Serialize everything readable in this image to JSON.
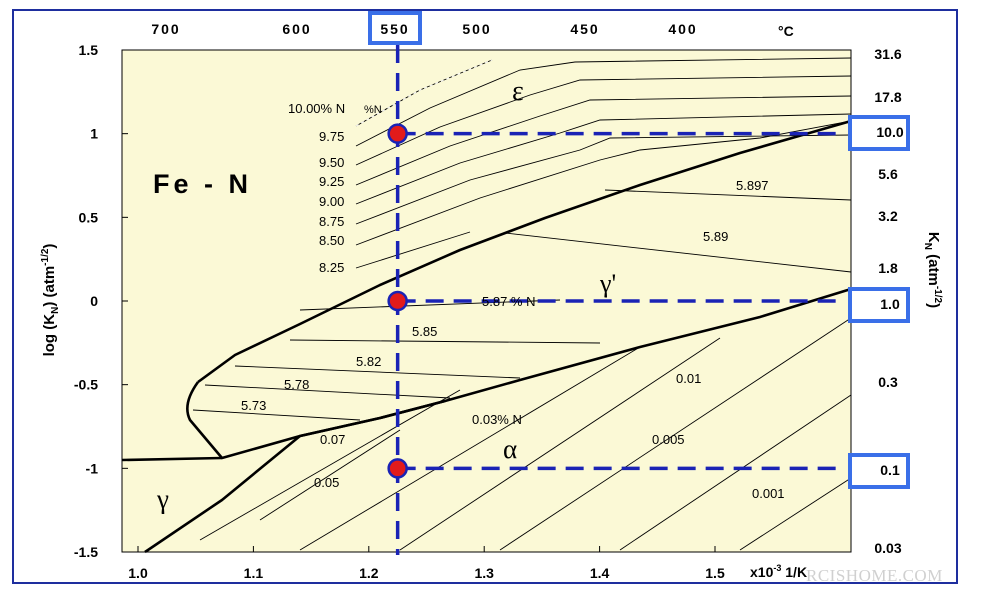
{
  "chart_data": {
    "type": "phase-diagram",
    "title": "Fe - N",
    "ylabel_left": "log (KN) (atm-1/2)",
    "ylabel_right": "KN (atm-1/2)",
    "xlabel_unit": "x10-3  1/K",
    "temp_unit": "°C",
    "x_range": [
      0.985,
      1.6
    ],
    "y_range": [
      -1.5,
      1.5
    ],
    "x_ticks": [
      "1.0",
      "1.1",
      "1.2",
      "1.3",
      "1.4",
      "1.5"
    ],
    "y_ticks_left": [
      "1.5",
      "1",
      "0.5",
      "0",
      "-0.5",
      "-1",
      "-1.5"
    ],
    "temp_ticks": [
      "700",
      "600",
      "550",
      "500",
      "450",
      "400"
    ],
    "temp_highlight": "550",
    "kn_ticks": [
      "31.6",
      "17.8",
      "10.0",
      "5.6",
      "3.2",
      "1.8",
      "1.0",
      "0.3",
      "0.1",
      "0.03"
    ],
    "kn_highlight": [
      "10.0",
      "1.0",
      "0.1"
    ],
    "phases": [
      "ε",
      "γ'",
      "α",
      "γ"
    ],
    "epsilon_isoconcentrates": [
      "10.00% N",
      "%N",
      "9.75",
      "9.50",
      "9.25",
      "9.00",
      "8.75",
      "8.50",
      "8.25"
    ],
    "gamma_prime_isoconcentrates": [
      "5.897",
      "5.89",
      "5.87 % N",
      "5.85",
      "5.82",
      "5.78",
      "5.73"
    ],
    "alpha_isoconcentrates": [
      "0.01",
      "0.03% N",
      "0.005",
      "0.001"
    ],
    "gamma_isoconcentrates": [
      "0.07",
      "0.05"
    ],
    "marked_points": [
      {
        "x": 1.225,
        "y": 1.0
      },
      {
        "x": 1.225,
        "y": 0.0
      },
      {
        "x": 1.225,
        "y": -1.0
      }
    ],
    "colors": {
      "plot_background": "#fbf9d6",
      "frame": "#1e2e9e",
      "highlight_box": "#3a6fe8",
      "dashed_lines": "#1a23b5",
      "points": "#e21b1b"
    }
  },
  "watermark": "RCISHOME.COM"
}
